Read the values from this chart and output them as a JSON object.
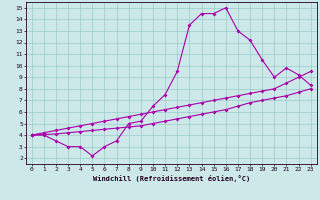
{
  "xlabel": "Windchill (Refroidissement éolien,°C)",
  "xlim": [
    -0.5,
    23.5
  ],
  "ylim": [
    1.5,
    15.5
  ],
  "xticks": [
    0,
    1,
    2,
    3,
    4,
    5,
    6,
    7,
    8,
    9,
    10,
    11,
    12,
    13,
    14,
    15,
    16,
    17,
    18,
    19,
    20,
    21,
    22,
    23
  ],
  "yticks": [
    2,
    3,
    4,
    5,
    6,
    7,
    8,
    9,
    10,
    11,
    12,
    13,
    14,
    15
  ],
  "bg_color": "#cce8e8",
  "line_color": "#aa00aa",
  "grid_color": "#99cccc",
  "line1_x": [
    0,
    1,
    2,
    3,
    4,
    5,
    6,
    7,
    8,
    9,
    10,
    11,
    12,
    13,
    14,
    15,
    16,
    17,
    18,
    19,
    20,
    21,
    22,
    23
  ],
  "line1_y": [
    4.0,
    4.0,
    3.5,
    3.0,
    3.0,
    2.2,
    3.0,
    3.5,
    5.0,
    5.2,
    6.5,
    7.5,
    9.5,
    13.5,
    14.5,
    14.5,
    15.0,
    13.0,
    12.2,
    10.5,
    9.0,
    9.8,
    9.2,
    8.3
  ],
  "line2_x": [
    0,
    1,
    2,
    3,
    4,
    5,
    6,
    7,
    8,
    9,
    10,
    11,
    12,
    13,
    14,
    15,
    16,
    17,
    18,
    19,
    20,
    21,
    22,
    23
  ],
  "line2_y": [
    4.0,
    4.2,
    4.4,
    4.6,
    4.8,
    5.0,
    5.2,
    5.4,
    5.6,
    5.8,
    6.0,
    6.2,
    6.4,
    6.6,
    6.8,
    7.0,
    7.2,
    7.4,
    7.6,
    7.8,
    8.0,
    8.5,
    9.0,
    9.5
  ],
  "line3_x": [
    0,
    1,
    2,
    3,
    4,
    5,
    6,
    7,
    8,
    9,
    10,
    11,
    12,
    13,
    14,
    15,
    16,
    17,
    18,
    19,
    20,
    21,
    22,
    23
  ],
  "line3_y": [
    4.0,
    4.05,
    4.1,
    4.2,
    4.3,
    4.4,
    4.5,
    4.6,
    4.7,
    4.8,
    5.0,
    5.2,
    5.4,
    5.6,
    5.8,
    6.0,
    6.2,
    6.5,
    6.8,
    7.0,
    7.2,
    7.4,
    7.7,
    8.0
  ]
}
